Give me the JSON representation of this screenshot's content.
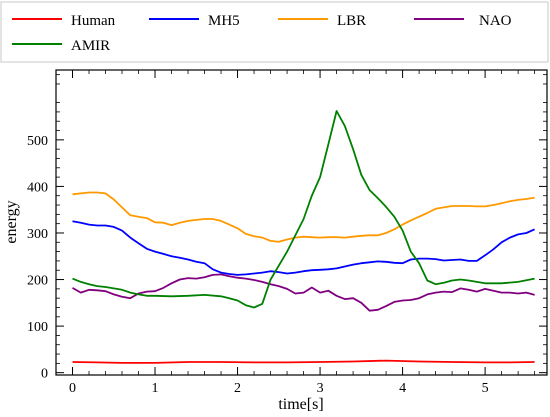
{
  "chart_data": {
    "type": "line",
    "title": "",
    "xlabel": "time[s]",
    "ylabel": "energy",
    "xlim": [
      -0.2,
      5.75
    ],
    "ylim": [
      -5,
      650
    ],
    "xticks": [
      0,
      1,
      2,
      3,
      4,
      5
    ],
    "yticks": [
      0,
      100,
      200,
      300,
      400,
      500
    ],
    "grid": false,
    "legend_position": "top",
    "series": [
      {
        "name": "Human",
        "color": "#ff0000",
        "x": [
          0,
          0.3,
          0.6,
          1.0,
          1.4,
          1.8,
          2.2,
          2.6,
          3.0,
          3.4,
          3.8,
          4.2,
          4.6,
          5.0,
          5.3,
          5.6
        ],
        "y": [
          23,
          22,
          21,
          21,
          23,
          23,
          22,
          22,
          23,
          24,
          26,
          24,
          23,
          22,
          22,
          23
        ]
      },
      {
        "name": "MH5",
        "color": "#0000ff",
        "x": [
          0,
          0.1,
          0.2,
          0.3,
          0.4,
          0.5,
          0.6,
          0.7,
          0.8,
          0.9,
          1.0,
          1.1,
          1.2,
          1.3,
          1.4,
          1.5,
          1.6,
          1.7,
          1.8,
          1.9,
          2.0,
          2.1,
          2.2,
          2.3,
          2.4,
          2.5,
          2.6,
          2.7,
          2.8,
          2.9,
          3.0,
          3.1,
          3.2,
          3.3,
          3.4,
          3.5,
          3.6,
          3.7,
          3.8,
          3.9,
          4.0,
          4.1,
          4.2,
          4.3,
          4.4,
          4.5,
          4.6,
          4.7,
          4.8,
          4.9,
          5.0,
          5.1,
          5.2,
          5.3,
          5.4,
          5.5,
          5.6
        ],
        "y": [
          325,
          322,
          318,
          316,
          316,
          313,
          305,
          290,
          278,
          266,
          260,
          255,
          250,
          247,
          243,
          238,
          235,
          222,
          215,
          212,
          210,
          211,
          213,
          215,
          218,
          216,
          213,
          215,
          218,
          220,
          221,
          222,
          224,
          228,
          232,
          235,
          237,
          239,
          238,
          236,
          235,
          243,
          245,
          245,
          244,
          241,
          242,
          243,
          240,
          240,
          252,
          265,
          280,
          290,
          297,
          300,
          308
        ]
      },
      {
        "name": "LBR",
        "color": "#ff9900",
        "x": [
          0,
          0.1,
          0.2,
          0.3,
          0.4,
          0.5,
          0.6,
          0.7,
          0.8,
          0.9,
          1.0,
          1.1,
          1.2,
          1.3,
          1.4,
          1.5,
          1.6,
          1.7,
          1.8,
          1.9,
          2.0,
          2.1,
          2.2,
          2.3,
          2.4,
          2.5,
          2.6,
          2.7,
          2.8,
          2.9,
          3.0,
          3.1,
          3.2,
          3.3,
          3.4,
          3.5,
          3.6,
          3.7,
          3.8,
          3.9,
          4.0,
          4.1,
          4.2,
          4.3,
          4.4,
          4.5,
          4.6,
          4.7,
          4.8,
          4.9,
          5.0,
          5.1,
          5.2,
          5.3,
          5.4,
          5.5,
          5.6
        ],
        "y": [
          383,
          385,
          387,
          387,
          385,
          372,
          355,
          338,
          335,
          332,
          323,
          322,
          317,
          322,
          326,
          328,
          330,
          330,
          326,
          318,
          310,
          298,
          293,
          290,
          283,
          281,
          286,
          290,
          292,
          291,
          290,
          291,
          291,
          290,
          292,
          294,
          295,
          295,
          300,
          308,
          318,
          327,
          335,
          343,
          352,
          355,
          358,
          358,
          358,
          357,
          357,
          360,
          364,
          368,
          371,
          373,
          376
        ]
      },
      {
        "name": "NAO",
        "color": "#800080",
        "x": [
          0,
          0.1,
          0.2,
          0.3,
          0.4,
          0.5,
          0.6,
          0.7,
          0.8,
          0.9,
          1.0,
          1.1,
          1.2,
          1.3,
          1.4,
          1.5,
          1.6,
          1.7,
          1.8,
          1.9,
          2.0,
          2.1,
          2.2,
          2.3,
          2.4,
          2.5,
          2.6,
          2.7,
          2.8,
          2.9,
          3.0,
          3.1,
          3.2,
          3.3,
          3.4,
          3.5,
          3.6,
          3.7,
          3.8,
          3.9,
          4.0,
          4.1,
          4.2,
          4.3,
          4.4,
          4.5,
          4.6,
          4.7,
          4.8,
          4.9,
          5.0,
          5.1,
          5.2,
          5.3,
          5.4,
          5.5,
          5.6
        ],
        "y": [
          182,
          172,
          178,
          177,
          175,
          168,
          163,
          160,
          170,
          174,
          175,
          182,
          192,
          200,
          203,
          202,
          205,
          210,
          211,
          207,
          204,
          202,
          199,
          195,
          190,
          186,
          180,
          170,
          172,
          183,
          172,
          176,
          165,
          158,
          160,
          150,
          133,
          135,
          143,
          152,
          155,
          156,
          160,
          168,
          172,
          174,
          173,
          181,
          178,
          174,
          180,
          176,
          172,
          172,
          170,
          172,
          167
        ]
      },
      {
        "name": "AMIR",
        "color": "#008000",
        "x": [
          0,
          0.1,
          0.2,
          0.3,
          0.4,
          0.5,
          0.6,
          0.7,
          0.8,
          0.9,
          1.0,
          1.2,
          1.4,
          1.6,
          1.8,
          1.9,
          2.0,
          2.1,
          2.2,
          2.3,
          2.4,
          2.6,
          2.8,
          2.9,
          3.0,
          3.1,
          3.2,
          3.3,
          3.4,
          3.5,
          3.6,
          3.7,
          3.8,
          3.9,
          4.0,
          4.1,
          4.2,
          4.3,
          4.4,
          4.5,
          4.6,
          4.7,
          4.8,
          5.0,
          5.2,
          5.4,
          5.6
        ],
        "y": [
          202,
          195,
          190,
          186,
          184,
          181,
          178,
          172,
          168,
          165,
          165,
          164,
          165,
          167,
          164,
          160,
          155,
          145,
          140,
          148,
          200,
          260,
          330,
          380,
          420,
          490,
          562,
          530,
          480,
          425,
          392,
          375,
          356,
          335,
          305,
          260,
          235,
          198,
          190,
          193,
          198,
          200,
          198,
          192,
          192,
          195,
          202
        ]
      }
    ]
  }
}
